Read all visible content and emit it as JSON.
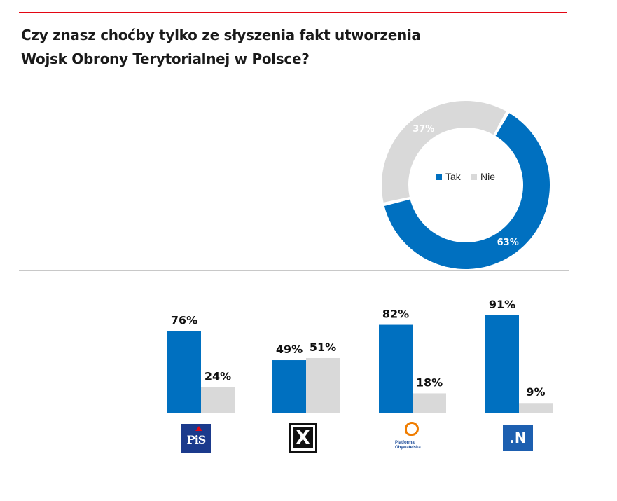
{
  "title": {
    "line1": "Czy znasz choćby tylko ze słyszenia fakt utworzenia",
    "line2": "Wojsk Obrony Terytorialnej  w Polsce?"
  },
  "colors": {
    "tak": "#0070c0",
    "nie": "#d9d9d9",
    "accent_rule": "#e30613"
  },
  "chart_data": [
    {
      "type": "pie",
      "variant": "donut",
      "labels": [
        "Tak",
        "Nie"
      ],
      "values": [
        63,
        37
      ],
      "value_labels": [
        "63%",
        "37%"
      ],
      "legend": [
        "Tak",
        "Nie"
      ],
      "legend_position": "center"
    },
    {
      "type": "bar",
      "categories": [
        "PiS",
        "Kukiz'15",
        "Platforma Obywatelska",
        ".N"
      ],
      "series": [
        {
          "name": "Tak",
          "values": [
            76,
            49,
            82,
            91
          ],
          "labels": [
            "76%",
            "49%",
            "82%",
            "91%"
          ]
        },
        {
          "name": "Nie",
          "values": [
            24,
            51,
            18,
            9
          ],
          "labels": [
            "24%",
            "51%",
            "18%",
            "9%"
          ]
        }
      ],
      "ylim": [
        0,
        100
      ]
    }
  ],
  "logos": {
    "pis": "PiS",
    "kukiz": "X",
    "po": "Platforma Obywatelska",
    "nowoczesna": ".N"
  }
}
